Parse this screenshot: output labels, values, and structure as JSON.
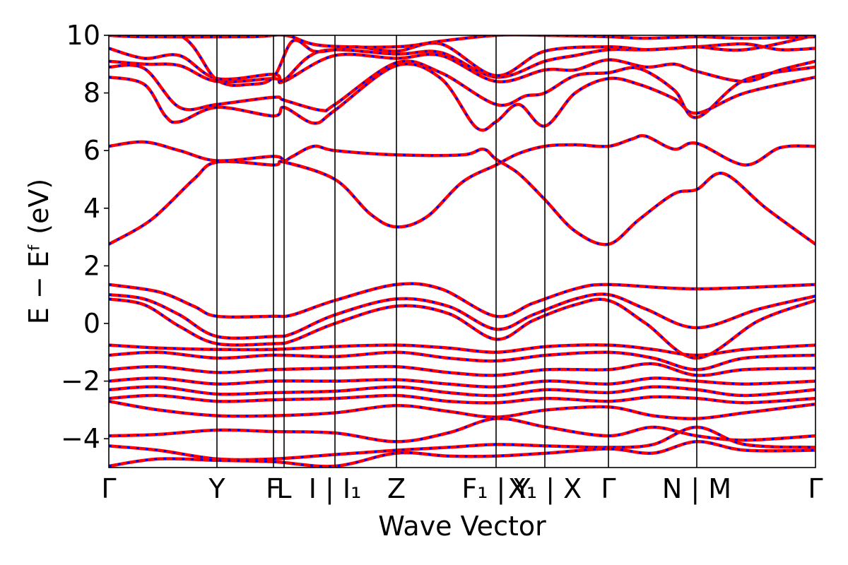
{
  "chart_data": {
    "type": "line",
    "title": "",
    "xlabel": "Wave Vector",
    "ylabel": "E − Eᶠ (eV)",
    "ylim": [
      -5,
      10
    ],
    "xlim": [
      0,
      1
    ],
    "grid": false,
    "legend": "none",
    "y_ticks": [
      {
        "value": -4,
        "label": "−4"
      },
      {
        "value": -2,
        "label": "−2"
      },
      {
        "value": 0,
        "label": "0"
      },
      {
        "value": 2,
        "label": "2"
      },
      {
        "value": 4,
        "label": "4"
      },
      {
        "value": 6,
        "label": "6"
      },
      {
        "value": 8,
        "label": "8"
      },
      {
        "value": 10,
        "label": "10"
      }
    ],
    "k_points": [
      {
        "label": "Γ",
        "x": 0.0
      },
      {
        "label": "Y",
        "x": 0.153
      },
      {
        "label": "F",
        "x": 0.233
      },
      {
        "label": "L",
        "x": 0.248
      },
      {
        "label": "I | I₁",
        "x": 0.32
      },
      {
        "label": "Z",
        "x": 0.407
      },
      {
        "label": "F₁ | Y",
        "x": 0.548
      },
      {
        "label": "X₁ | X",
        "x": 0.617
      },
      {
        "label": "Γ",
        "x": 0.707
      },
      {
        "label": "N | M",
        "x": 0.832
      },
      {
        "label": "Γ",
        "x": 1.0
      }
    ],
    "series": [
      {
        "color": "#ff0000",
        "style": "solid"
      },
      {
        "color": "#0000ff",
        "style": "dashed"
      }
    ],
    "bands": [
      [
        [
          0,
          2.75
        ],
        [
          0.06,
          3.6
        ],
        [
          0.12,
          5.0
        ],
        [
          0.153,
          5.6
        ],
        [
          0.233,
          5.5
        ],
        [
          0.248,
          5.6
        ],
        [
          0.32,
          5.0
        ],
        [
          0.37,
          3.8
        ],
        [
          0.407,
          3.35
        ],
        [
          0.45,
          3.7
        ],
        [
          0.5,
          4.9
        ],
        [
          0.548,
          5.5
        ],
        [
          0.58,
          5.9
        ],
        [
          0.617,
          6.15
        ],
        [
          0.66,
          6.2
        ],
        [
          0.707,
          6.15
        ],
        [
          0.74,
          6.4
        ],
        [
          0.76,
          6.5
        ],
        [
          0.8,
          6.05
        ],
        [
          0.832,
          6.25
        ],
        [
          0.9,
          5.5
        ],
        [
          0.95,
          6.1
        ],
        [
          1.0,
          6.15
        ]
      ],
      [
        [
          0,
          6.15
        ],
        [
          0.05,
          6.3
        ],
        [
          0.1,
          6.0
        ],
        [
          0.153,
          5.65
        ],
        [
          0.233,
          5.8
        ],
        [
          0.248,
          5.65
        ],
        [
          0.26,
          5.8
        ],
        [
          0.29,
          6.15
        ],
        [
          0.32,
          6.0
        ],
        [
          0.407,
          5.85
        ],
        [
          0.5,
          5.85
        ],
        [
          0.53,
          6.05
        ],
        [
          0.548,
          5.7
        ],
        [
          0.58,
          5.2
        ],
        [
          0.617,
          4.3
        ],
        [
          0.66,
          3.2
        ],
        [
          0.707,
          2.75
        ],
        [
          0.75,
          3.6
        ],
        [
          0.8,
          4.5
        ],
        [
          0.832,
          4.65
        ],
        [
          0.87,
          5.2
        ],
        [
          0.93,
          4.0
        ],
        [
          1.0,
          2.75
        ]
      ],
      [
        [
          0,
          1.35
        ],
        [
          0.07,
          1.1
        ],
        [
          0.12,
          0.6
        ],
        [
          0.153,
          0.25
        ],
        [
          0.233,
          0.25
        ],
        [
          0.26,
          0.3
        ],
        [
          0.32,
          0.8
        ],
        [
          0.407,
          1.35
        ],
        [
          0.47,
          1.2
        ],
        [
          0.548,
          0.25
        ],
        [
          0.6,
          0.7
        ],
        [
          0.66,
          1.2
        ],
        [
          0.707,
          1.35
        ],
        [
          0.832,
          1.2
        ],
        [
          1.0,
          1.35
        ]
      ],
      [
        [
          0,
          1.0
        ],
        [
          0.05,
          0.85
        ],
        [
          0.1,
          0.3
        ],
        [
          0.153,
          -0.45
        ],
        [
          0.233,
          -0.45
        ],
        [
          0.26,
          -0.35
        ],
        [
          0.32,
          0.3
        ],
        [
          0.407,
          0.85
        ],
        [
          0.48,
          0.6
        ],
        [
          0.548,
          -0.2
        ],
        [
          0.6,
          0.3
        ],
        [
          0.66,
          0.85
        ],
        [
          0.707,
          1.0
        ],
        [
          0.76,
          0.5
        ],
        [
          0.832,
          -0.15
        ],
        [
          0.92,
          0.5
        ],
        [
          1.0,
          0.95
        ]
      ],
      [
        [
          0,
          0.85
        ],
        [
          0.05,
          0.65
        ],
        [
          0.1,
          -0.1
        ],
        [
          0.153,
          -0.7
        ],
        [
          0.233,
          -0.7
        ],
        [
          0.26,
          -0.6
        ],
        [
          0.32,
          0.0
        ],
        [
          0.407,
          0.6
        ],
        [
          0.48,
          0.35
        ],
        [
          0.548,
          -0.55
        ],
        [
          0.6,
          0.1
        ],
        [
          0.66,
          0.65
        ],
        [
          0.707,
          0.8
        ],
        [
          0.76,
          0.0
        ],
        [
          0.832,
          -1.2
        ],
        [
          0.92,
          0.1
        ],
        [
          1.0,
          0.8
        ]
      ],
      [
        [
          0,
          -0.75
        ],
        [
          0.07,
          -0.85
        ],
        [
          0.153,
          -0.9
        ],
        [
          0.233,
          -0.9
        ],
        [
          0.32,
          -0.8
        ],
        [
          0.407,
          -0.75
        ],
        [
          0.48,
          -0.85
        ],
        [
          0.548,
          -1.0
        ],
        [
          0.62,
          -0.8
        ],
        [
          0.707,
          -0.75
        ],
        [
          0.77,
          -0.9
        ],
        [
          0.832,
          -1.1
        ],
        [
          0.9,
          -0.9
        ],
        [
          1.0,
          -0.75
        ]
      ],
      [
        [
          0,
          -1.1
        ],
        [
          0.07,
          -1.0
        ],
        [
          0.153,
          -1.2
        ],
        [
          0.233,
          -1.1
        ],
        [
          0.32,
          -1.15
        ],
        [
          0.407,
          -1.0
        ],
        [
          0.48,
          -1.2
        ],
        [
          0.548,
          -1.3
        ],
        [
          0.62,
          -1.1
        ],
        [
          0.707,
          -1.0
        ],
        [
          0.77,
          -1.2
        ],
        [
          0.832,
          -1.6
        ],
        [
          0.9,
          -1.2
        ],
        [
          1.0,
          -1.1
        ]
      ],
      [
        [
          0,
          -1.6
        ],
        [
          0.07,
          -1.5
        ],
        [
          0.153,
          -1.7
        ],
        [
          0.233,
          -1.6
        ],
        [
          0.32,
          -1.55
        ],
        [
          0.407,
          -1.5
        ],
        [
          0.48,
          -1.7
        ],
        [
          0.548,
          -1.8
        ],
        [
          0.62,
          -1.6
        ],
        [
          0.707,
          -1.6
        ],
        [
          0.77,
          -1.4
        ],
        [
          0.832,
          -1.8
        ],
        [
          0.9,
          -1.6
        ],
        [
          1.0,
          -1.55
        ]
      ],
      [
        [
          0,
          -2.0
        ],
        [
          0.07,
          -1.9
        ],
        [
          0.153,
          -2.1
        ],
        [
          0.233,
          -2.0
        ],
        [
          0.32,
          -2.0
        ],
        [
          0.407,
          -1.95
        ],
        [
          0.48,
          -2.1
        ],
        [
          0.548,
          -2.2
        ],
        [
          0.62,
          -2.0
        ],
        [
          0.707,
          -2.1
        ],
        [
          0.77,
          -1.9
        ],
        [
          0.832,
          -2.0
        ],
        [
          0.9,
          -2.1
        ],
        [
          1.0,
          -2.0
        ]
      ],
      [
        [
          0,
          -2.3
        ],
        [
          0.07,
          -2.2
        ],
        [
          0.153,
          -2.45
        ],
        [
          0.233,
          -2.4
        ],
        [
          0.32,
          -2.35
        ],
        [
          0.407,
          -2.2
        ],
        [
          0.48,
          -2.4
        ],
        [
          0.548,
          -2.5
        ],
        [
          0.62,
          -2.3
        ],
        [
          0.707,
          -2.4
        ],
        [
          0.77,
          -2.2
        ],
        [
          0.832,
          -2.3
        ],
        [
          0.9,
          -2.5
        ],
        [
          1.0,
          -2.3
        ]
      ],
      [
        [
          0,
          -2.6
        ],
        [
          0.07,
          -2.5
        ],
        [
          0.153,
          -2.7
        ],
        [
          0.233,
          -2.65
        ],
        [
          0.32,
          -2.6
        ],
        [
          0.407,
          -2.5
        ],
        [
          0.48,
          -2.7
        ],
        [
          0.548,
          -2.75
        ],
        [
          0.62,
          -2.6
        ],
        [
          0.707,
          -2.7
        ],
        [
          0.77,
          -2.55
        ],
        [
          0.832,
          -2.6
        ],
        [
          0.9,
          -2.75
        ],
        [
          1.0,
          -2.6
        ]
      ],
      [
        [
          0,
          -2.7
        ],
        [
          0.07,
          -3.0
        ],
        [
          0.153,
          -3.2
        ],
        [
          0.233,
          -3.2
        ],
        [
          0.32,
          -3.1
        ],
        [
          0.407,
          -2.85
        ],
        [
          0.48,
          -3.05
        ],
        [
          0.548,
          -3.25
        ],
        [
          0.62,
          -3.0
        ],
        [
          0.707,
          -2.9
        ],
        [
          0.77,
          -3.2
        ],
        [
          0.832,
          -3.3
        ],
        [
          0.9,
          -3.1
        ],
        [
          1.0,
          -2.8
        ]
      ],
      [
        [
          0,
          -3.9
        ],
        [
          0.07,
          -3.85
        ],
        [
          0.153,
          -3.7
        ],
        [
          0.233,
          -3.75
        ],
        [
          0.32,
          -3.8
        ],
        [
          0.407,
          -4.1
        ],
        [
          0.48,
          -3.8
        ],
        [
          0.548,
          -3.3
        ],
        [
          0.62,
          -3.6
        ],
        [
          0.707,
          -3.9
        ],
        [
          0.77,
          -3.6
        ],
        [
          0.832,
          -3.9
        ],
        [
          0.9,
          -4.05
        ],
        [
          1.0,
          -3.9
        ]
      ],
      [
        [
          0,
          -4.25
        ],
        [
          0.07,
          -4.4
        ],
        [
          0.153,
          -4.7
        ],
        [
          0.233,
          -4.7
        ],
        [
          0.32,
          -4.55
        ],
        [
          0.407,
          -4.4
        ],
        [
          0.48,
          -4.3
        ],
        [
          0.548,
          -4.2
        ],
        [
          0.62,
          -4.25
        ],
        [
          0.707,
          -4.3
        ],
        [
          0.77,
          -4.2
        ],
        [
          0.832,
          -3.6
        ],
        [
          0.9,
          -4.2
        ],
        [
          1.0,
          -4.3
        ]
      ],
      [
        [
          0,
          -4.95
        ],
        [
          0.07,
          -4.7
        ],
        [
          0.153,
          -4.75
        ],
        [
          0.233,
          -4.8
        ],
        [
          0.32,
          -4.95
        ],
        [
          0.407,
          -4.5
        ],
        [
          0.48,
          -4.6
        ],
        [
          0.548,
          -4.6
        ],
        [
          0.62,
          -4.5
        ],
        [
          0.707,
          -4.35
        ],
        [
          0.77,
          -4.5
        ],
        [
          0.832,
          -4.1
        ],
        [
          0.9,
          -4.4
        ],
        [
          1.0,
          -4.4
        ]
      ],
      [
        [
          0,
          8.55
        ],
        [
          0.05,
          8.3
        ],
        [
          0.08,
          7.2
        ],
        [
          0.1,
          7.0
        ],
        [
          0.153,
          7.5
        ],
        [
          0.233,
          7.2
        ],
        [
          0.248,
          7.5
        ],
        [
          0.29,
          6.95
        ],
        [
          0.32,
          7.4
        ],
        [
          0.407,
          8.95
        ],
        [
          0.47,
          8.5
        ],
        [
          0.52,
          6.8
        ],
        [
          0.548,
          7.0
        ],
        [
          0.58,
          7.6
        ],
        [
          0.617,
          6.85
        ],
        [
          0.66,
          8.0
        ],
        [
          0.707,
          8.5
        ],
        [
          0.75,
          8.3
        ],
        [
          0.8,
          7.8
        ],
        [
          0.832,
          7.3
        ],
        [
          0.9,
          8.0
        ],
        [
          1.0,
          8.55
        ]
      ],
      [
        [
          0,
          8.9
        ],
        [
          0.05,
          8.85
        ],
        [
          0.1,
          7.5
        ],
        [
          0.153,
          7.6
        ],
        [
          0.233,
          7.85
        ],
        [
          0.248,
          7.75
        ],
        [
          0.3,
          7.4
        ],
        [
          0.32,
          7.6
        ],
        [
          0.407,
          9.05
        ],
        [
          0.47,
          8.7
        ],
        [
          0.548,
          7.6
        ],
        [
          0.59,
          7.9
        ],
        [
          0.617,
          8.0
        ],
        [
          0.66,
          8.6
        ],
        [
          0.707,
          8.7
        ],
        [
          0.75,
          8.85
        ],
        [
          0.8,
          8.1
        ],
        [
          0.832,
          7.15
        ],
        [
          0.9,
          8.45
        ],
        [
          1.0,
          8.9
        ]
      ],
      [
        [
          0,
          9.1
        ],
        [
          0.05,
          9.0
        ],
        [
          0.1,
          8.95
        ],
        [
          0.153,
          8.4
        ],
        [
          0.233,
          8.5
        ],
        [
          0.248,
          8.4
        ],
        [
          0.32,
          9.3
        ],
        [
          0.407,
          9.2
        ],
        [
          0.47,
          9.3
        ],
        [
          0.548,
          8.4
        ],
        [
          0.617,
          8.8
        ],
        [
          0.66,
          8.8
        ],
        [
          0.707,
          9.15
        ],
        [
          0.76,
          8.9
        ],
        [
          0.8,
          9.0
        ],
        [
          0.832,
          8.75
        ],
        [
          0.9,
          8.4
        ],
        [
          0.95,
          8.8
        ],
        [
          1.0,
          9.1
        ]
      ],
      [
        [
          0,
          9.55
        ],
        [
          0.05,
          9.2
        ],
        [
          0.1,
          9.3
        ],
        [
          0.153,
          8.5
        ],
        [
          0.233,
          8.65
        ],
        [
          0.248,
          8.45
        ],
        [
          0.3,
          9.45
        ],
        [
          0.407,
          9.35
        ],
        [
          0.47,
          9.4
        ],
        [
          0.548,
          8.55
        ],
        [
          0.617,
          9.1
        ],
        [
          0.66,
          9.3
        ],
        [
          0.707,
          9.5
        ],
        [
          0.76,
          9.5
        ],
        [
          0.832,
          9.6
        ],
        [
          0.9,
          9.7
        ],
        [
          0.95,
          9.5
        ],
        [
          1.0,
          9.55
        ]
      ],
      [
        [
          0,
          10.0
        ],
        [
          0.1,
          10.0
        ],
        [
          0.153,
          8.45
        ],
        [
          0.2,
          8.3
        ],
        [
          0.233,
          8.55
        ],
        [
          0.26,
          9.8
        ],
        [
          0.29,
          9.45
        ],
        [
          0.32,
          9.5
        ],
        [
          0.35,
          9.6
        ],
        [
          0.407,
          9.45
        ],
        [
          0.47,
          9.7
        ],
        [
          0.548,
          8.6
        ],
        [
          0.617,
          9.45
        ],
        [
          0.707,
          9.6
        ],
        [
          0.76,
          9.5
        ],
        [
          0.8,
          9.55
        ],
        [
          0.832,
          9.6
        ],
        [
          0.9,
          9.5
        ],
        [
          1.0,
          10.0
        ]
      ],
      [
        [
          0,
          10.0
        ],
        [
          0.05,
          9.95
        ],
        [
          0.2,
          9.95
        ],
        [
          0.25,
          10.0
        ],
        [
          0.3,
          9.65
        ],
        [
          0.407,
          9.6
        ],
        [
          0.47,
          9.8
        ],
        [
          0.548,
          10.0
        ],
        [
          0.617,
          10.0
        ],
        [
          0.707,
          9.95
        ],
        [
          0.76,
          9.9
        ],
        [
          0.832,
          9.95
        ],
        [
          0.9,
          9.9
        ],
        [
          1.0,
          9.95
        ]
      ]
    ]
  }
}
